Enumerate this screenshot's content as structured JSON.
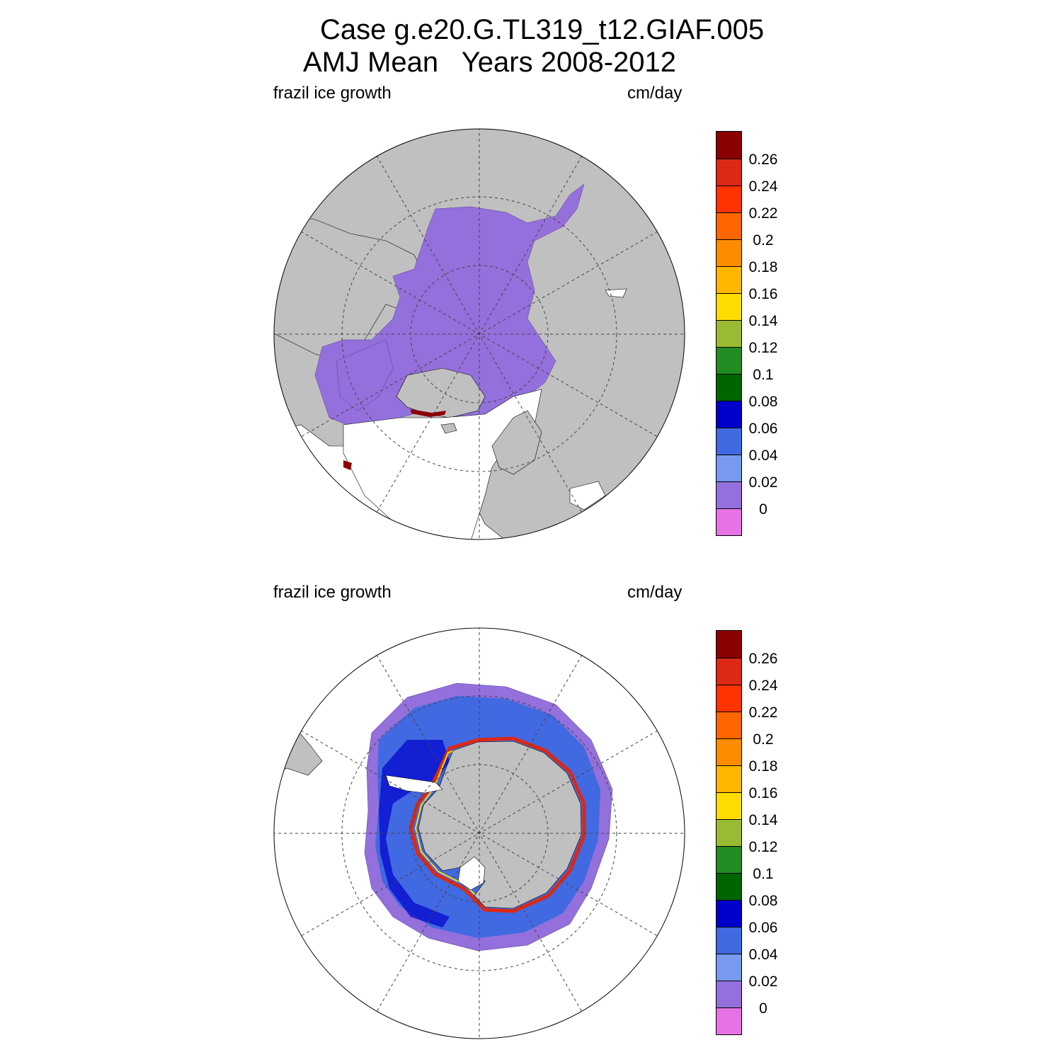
{
  "figure": {
    "title_line1": "Case g.e20.G.TL319_t12.GIAF.005",
    "title_line2": "AMJ Mean   Years 2008-2012"
  },
  "panels": [
    {
      "variable": "frazil ice growth",
      "units": "cm/day",
      "hemisphere": "north"
    },
    {
      "variable": "frazil ice growth",
      "units": "cm/day",
      "hemisphere": "south"
    }
  ],
  "colorbar": {
    "labels": [
      "0.26",
      "0.24",
      "0.22",
      "0.2",
      "0.18",
      "0.16",
      "0.14",
      "0.12",
      "0.1",
      "0.08",
      "0.06",
      "0.04",
      "0.02",
      "0"
    ],
    "colors_top_to_bottom": [
      "#8b0000",
      "#dc2814",
      "#ff3300",
      "#ff6600",
      "#ff8c00",
      "#ffb700",
      "#ffdc00",
      "#99bb33",
      "#228b22",
      "#006400",
      "#0000cd",
      "#4169e1",
      "#7799ee",
      "#9370db",
      "#e673e6"
    ]
  },
  "map_colors": {
    "land": "#c0c0c0",
    "ocean": "#ffffff",
    "ice_low": "#9370db",
    "grid": "#444444"
  }
}
